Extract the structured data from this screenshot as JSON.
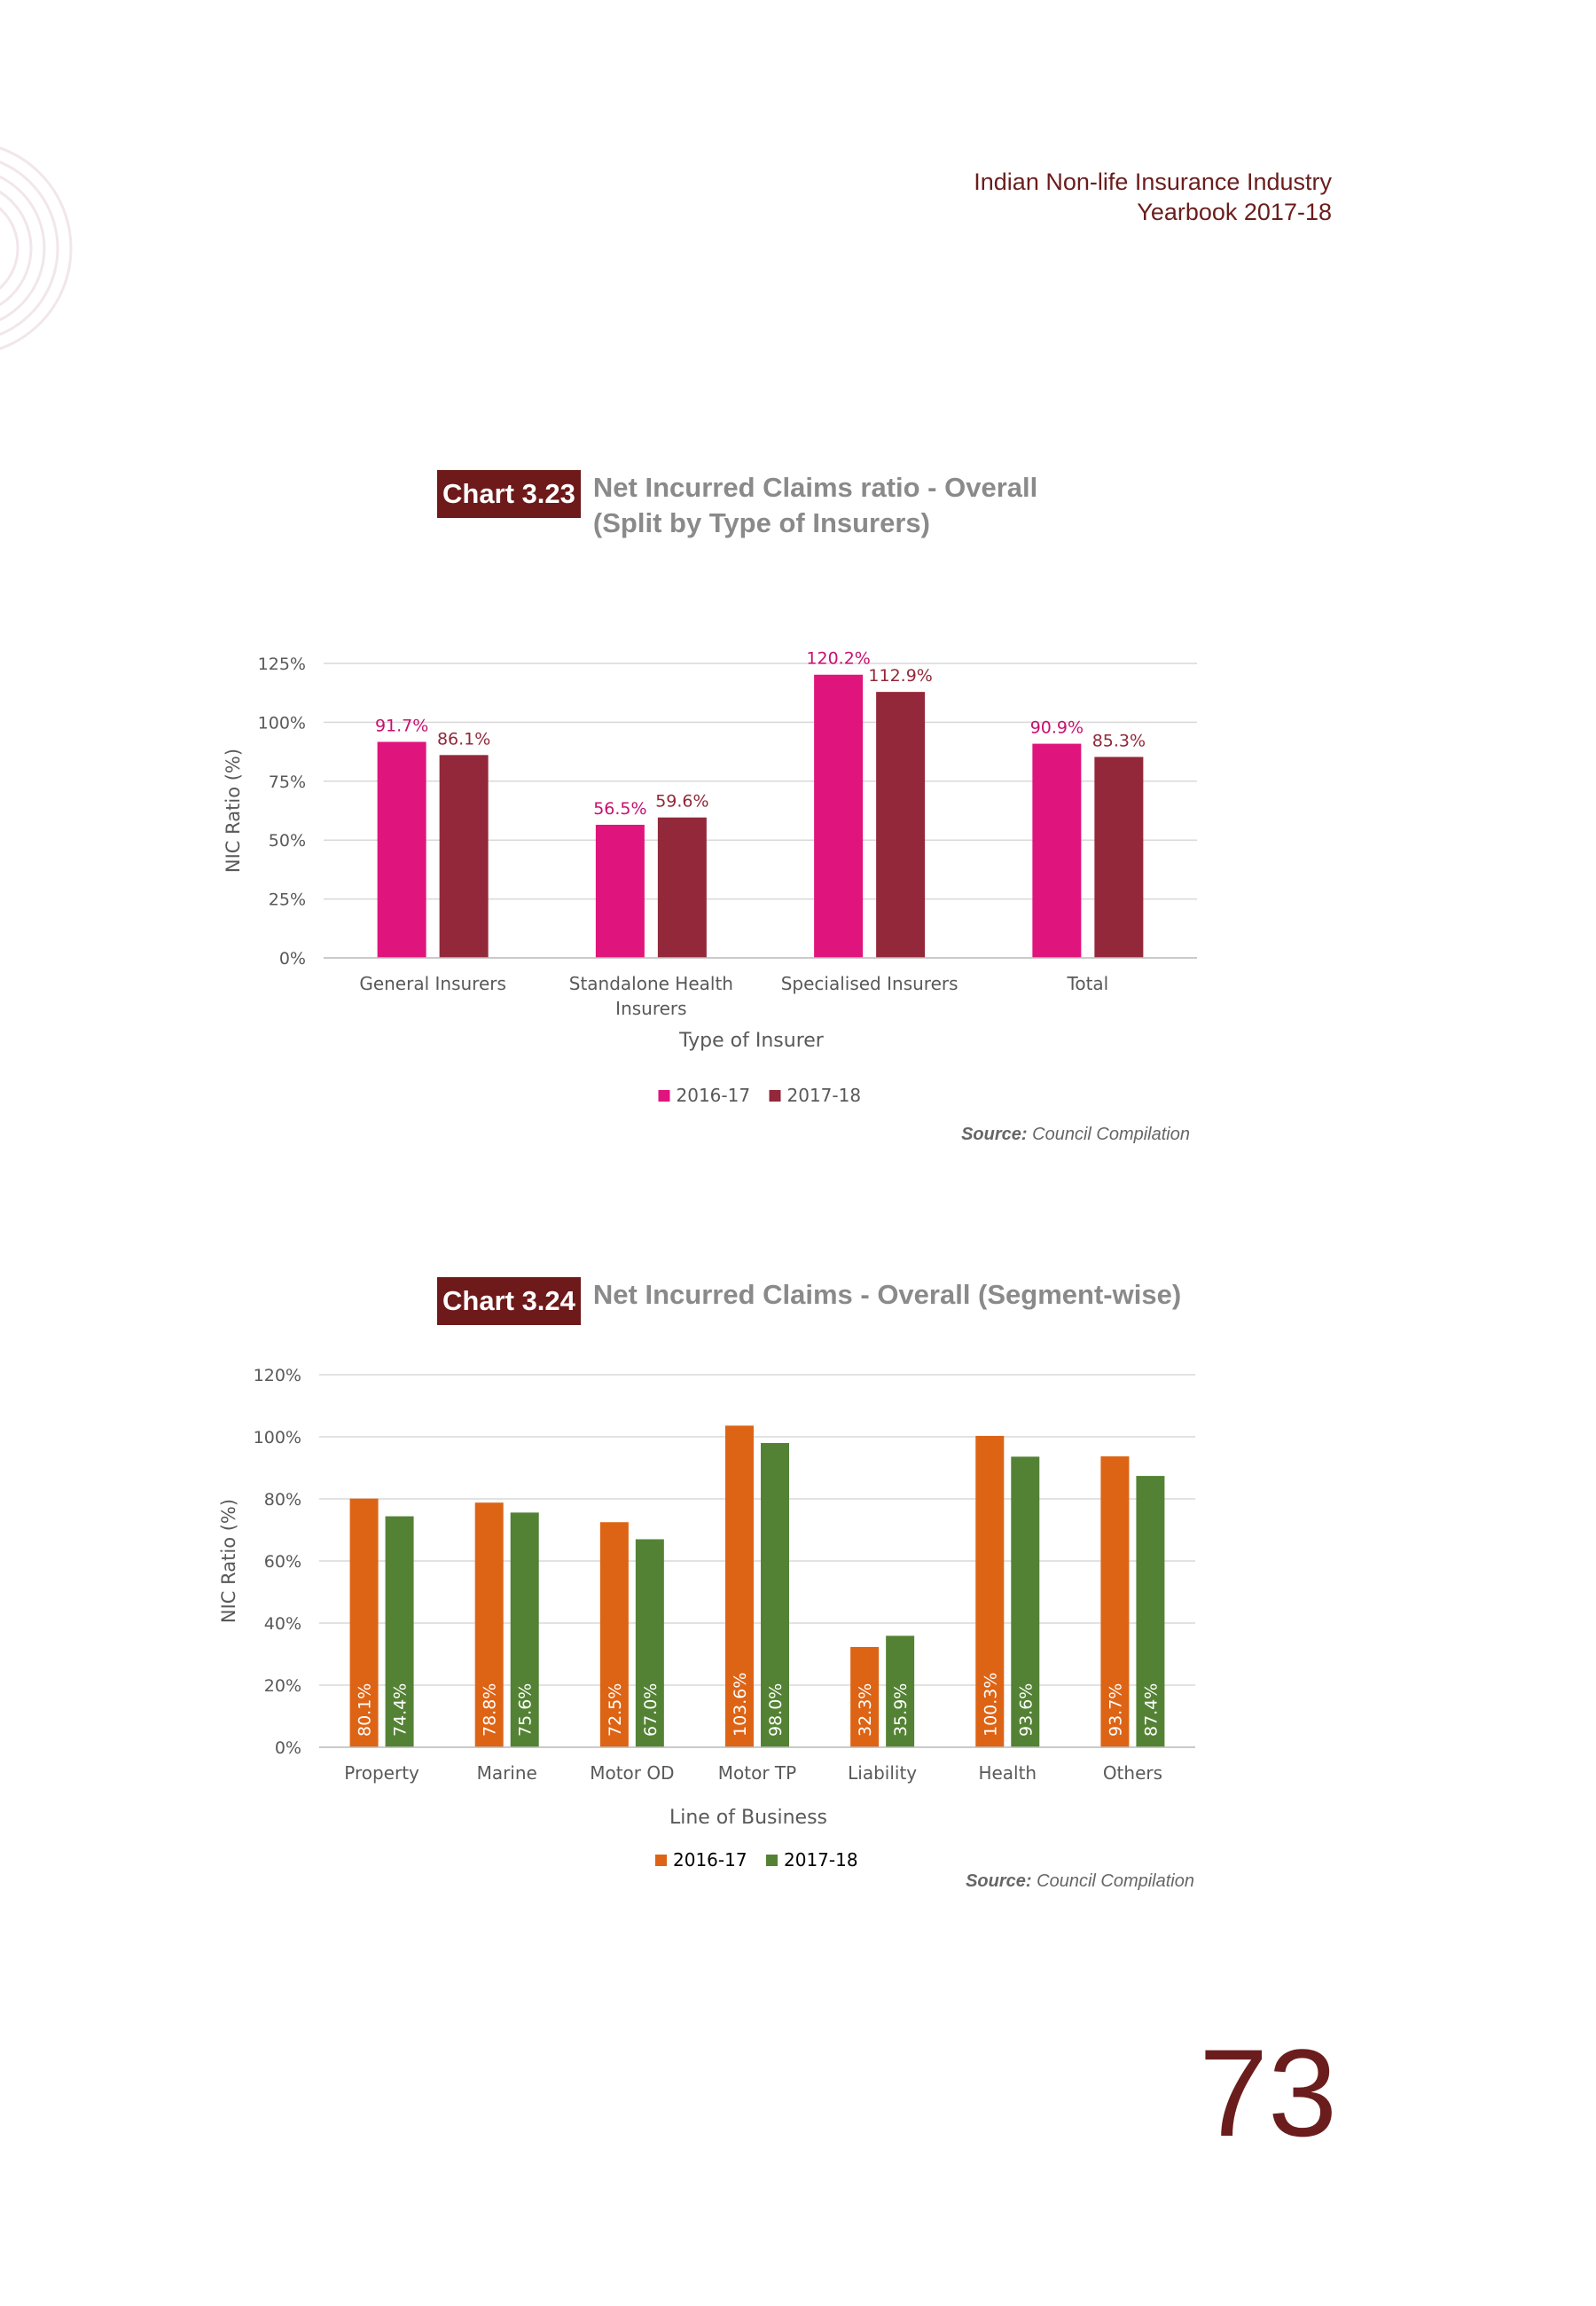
{
  "header": {
    "line1": "Indian Non-life Insurance Industry",
    "line2": "Yearbook 2017-18"
  },
  "page_number": "73",
  "colors": {
    "brand": "#6e1a1a",
    "title_grey": "#8a8a8a"
  },
  "chart1": {
    "badge": "Chart 3.23",
    "title_line1": "Net Incurred Claims ratio - Overall",
    "title_line2": "(Split by Type of Insurers)",
    "source_label": "Source:",
    "source_text": "Council Compilation"
  },
  "chart2": {
    "badge": "Chart 3.24",
    "title_line1": "Net Incurred Claims - Overall (Segment-wise)",
    "source_label": "Source:",
    "source_text": "Council Compilation"
  },
  "chart_data": [
    {
      "type": "bar",
      "categories": [
        [
          "General Insurers"
        ],
        [
          "Standalone Health",
          "Insurers"
        ],
        [
          "Specialised Insurers"
        ],
        [
          "Total"
        ]
      ],
      "series": [
        {
          "name": "2016-17",
          "color": "#e0147d",
          "label_color": "#c8106f",
          "values": [
            91.7,
            56.5,
            120.2,
            90.9
          ]
        },
        {
          "name": "2017-18",
          "color": "#93283a",
          "label_color": "#93283a",
          "values": [
            86.1,
            59.6,
            112.9,
            85.3
          ]
        }
      ],
      "xlabel": "Type of Insurer",
      "ylabel": "NIC Ratio (%)",
      "ylim": [
        0,
        125
      ],
      "yticks": [
        0,
        25,
        50,
        75,
        100,
        125
      ],
      "tick_labels": [
        "0%",
        "25%",
        "50%",
        "75%",
        "100%",
        "125%"
      ],
      "grid": true,
      "legend": "bottom-center"
    },
    {
      "type": "bar",
      "categories": [
        [
          "Property"
        ],
        [
          "Marine"
        ],
        [
          "Motor OD"
        ],
        [
          "Motor TP"
        ],
        [
          "Liability"
        ],
        [
          "Health"
        ],
        [
          "Others"
        ]
      ],
      "series": [
        {
          "name": "2016-17",
          "color": "#dd6415",
          "label_color": "#ffffff",
          "values": [
            80.1,
            78.8,
            72.5,
            103.6,
            32.3,
            100.3,
            93.7
          ]
        },
        {
          "name": "2017-18",
          "color": "#548235",
          "label_color": "#ffffff",
          "values": [
            74.4,
            75.6,
            67.0,
            98.0,
            35.9,
            93.6,
            87.4
          ]
        }
      ],
      "xlabel": "Line of Business",
      "ylabel": "NIC Ratio (%)",
      "ylim": [
        0,
        120
      ],
      "yticks": [
        0,
        20,
        40,
        60,
        80,
        100,
        120
      ],
      "tick_labels": [
        "0%",
        "20%",
        "40%",
        "60%",
        "80%",
        "100%",
        "120%"
      ],
      "grid": true,
      "legend": "bottom-center"
    }
  ]
}
